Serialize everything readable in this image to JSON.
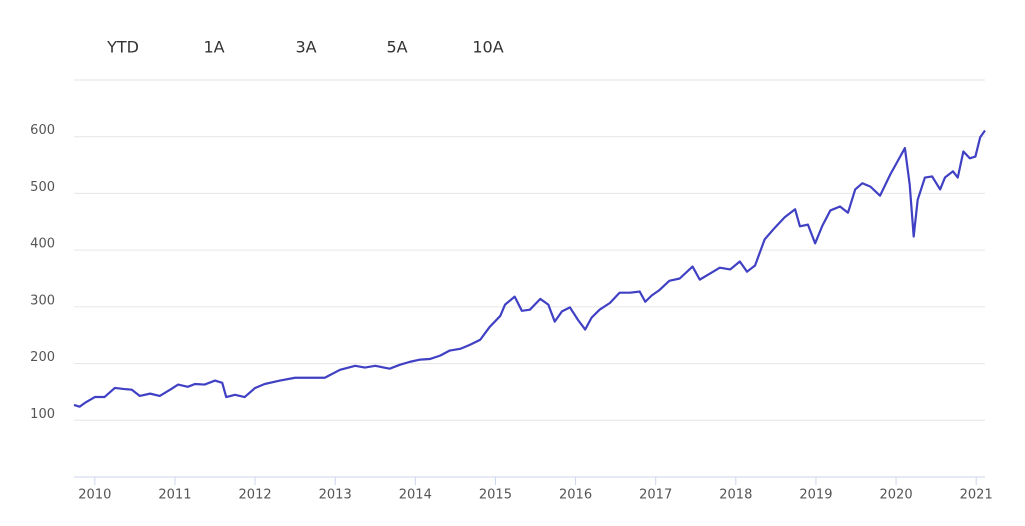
{
  "chart_data": {
    "type": "line",
    "buttons": [
      "YTD",
      "1A",
      "3A",
      "5A",
      "10A"
    ],
    "x": [
      2009.74,
      2009.81,
      2009.89,
      2010.0,
      2010.12,
      2010.25,
      2010.37,
      2010.46,
      2010.56,
      2010.69,
      2010.81,
      2010.94,
      2011.04,
      2011.16,
      2011.25,
      2011.37,
      2011.5,
      2011.59,
      2011.64,
      2011.75,
      2011.87,
      2012.0,
      2012.12,
      2012.31,
      2012.5,
      2012.68,
      2012.87,
      2013.06,
      2013.25,
      2013.37,
      2013.5,
      2013.68,
      2013.81,
      2013.93,
      2014.06,
      2014.18,
      2014.31,
      2014.43,
      2014.56,
      2014.68,
      2014.81,
      2014.93,
      2015.06,
      2015.12,
      2015.24,
      2015.33,
      2015.43,
      2015.56,
      2015.66,
      2015.74,
      2015.83,
      2015.93,
      2016.03,
      2016.12,
      2016.2,
      2016.3,
      2016.43,
      2016.55,
      2016.68,
      2016.8,
      2016.87,
      2016.95,
      2017.05,
      2017.17,
      2017.3,
      2017.46,
      2017.55,
      2017.68,
      2017.8,
      2017.93,
      2018.05,
      2018.14,
      2018.24,
      2018.36,
      2018.49,
      2018.61,
      2018.74,
      2018.8,
      2018.9,
      2018.99,
      2019.08,
      2019.18,
      2019.3,
      2019.4,
      2019.49,
      2019.58,
      2019.68,
      2019.8,
      2019.93,
      2020.02,
      2020.11,
      2020.17,
      2020.22,
      2020.27,
      2020.36,
      2020.45,
      2020.55,
      2020.61,
      2020.71,
      2020.77,
      2020.84,
      2020.92,
      2020.99,
      2021.05,
      2021.11
    ],
    "series": [
      {
        "color": "#4040c4",
        "values": [
          127,
          124,
          132,
          141,
          141,
          157,
          155,
          154,
          143,
          147,
          143,
          154,
          163,
          159,
          164,
          163,
          170,
          166,
          141,
          145,
          141,
          157,
          164,
          170,
          175,
          175,
          175,
          189,
          196,
          193,
          196,
          191,
          198,
          203,
          207,
          208,
          214,
          223,
          226,
          233,
          242,
          265,
          284,
          304,
          318,
          293,
          295,
          314,
          304,
          274,
          292,
          299,
          277,
          260,
          281,
          295,
          307,
          325,
          325,
          327,
          309,
          320,
          330,
          346,
          350,
          371,
          348,
          359,
          369,
          366,
          380,
          362,
          373,
          419,
          440,
          458,
          472,
          442,
          445,
          412,
          443,
          470,
          477,
          466,
          507,
          518,
          512,
          496,
          534,
          557,
          580,
          516,
          424,
          489,
          528,
          530,
          507,
          528,
          539,
          528,
          574,
          562,
          565,
          599,
          611
        ]
      }
    ],
    "xlim": [
      2009.74,
      2021.11
    ],
    "xticks": [
      2010,
      2011,
      2012,
      2013,
      2014,
      2015,
      2016,
      2017,
      2018,
      2019,
      2020,
      2021
    ],
    "ylim": [
      0,
      700
    ],
    "yticks": [
      100,
      200,
      300,
      400,
      500,
      600
    ],
    "grid": true
  }
}
